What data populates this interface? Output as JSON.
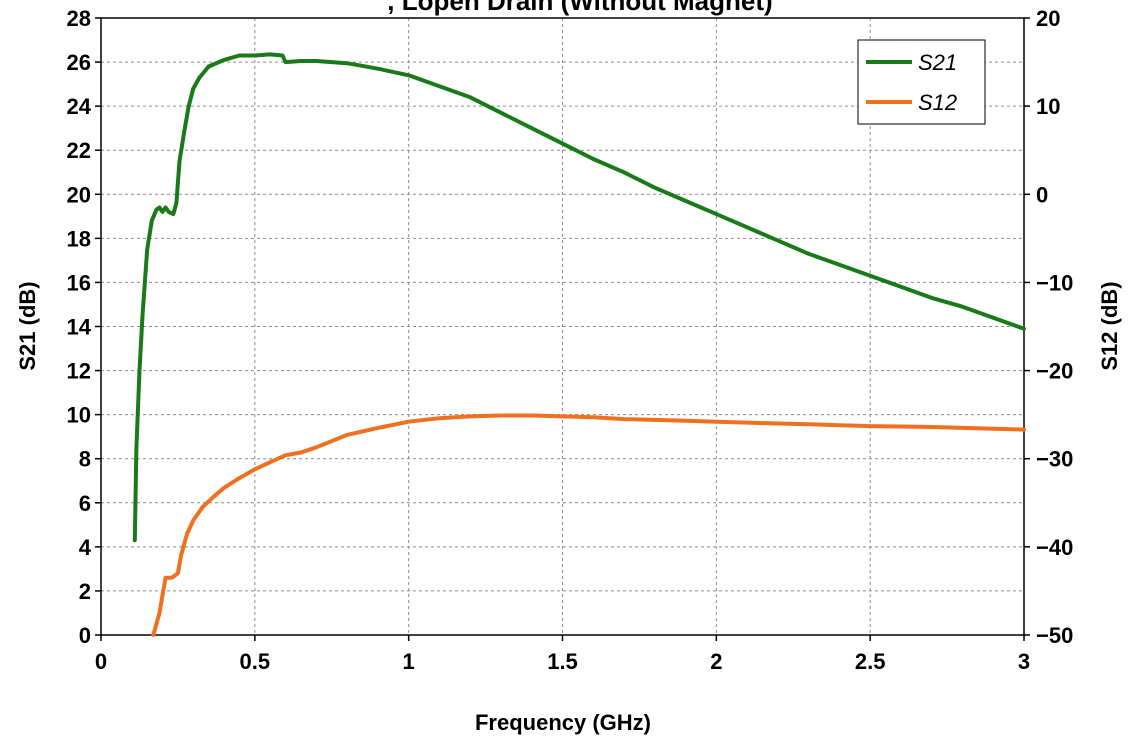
{
  "chart_data": {
    "type": "line",
    "title": ", Lopen Drain (Without Magnet)",
    "xlabel": "Frequency (GHz)",
    "ylabel_left": "S21 (dB)",
    "ylabel_right": "S12 (dB)",
    "xlim": [
      0,
      3
    ],
    "ylim_left": [
      0,
      28
    ],
    "ylim_right": [
      -50,
      20
    ],
    "x_ticks": [
      "0",
      "0.5",
      "1",
      "1.5",
      "2",
      "2.5",
      "3"
    ],
    "y_left_ticks": [
      "0",
      "2",
      "4",
      "6",
      "8",
      "10",
      "12",
      "14",
      "16",
      "18",
      "20",
      "22",
      "24",
      "26",
      "28"
    ],
    "y_right_ticks": [
      "-50",
      "-40",
      "-30",
      "-20",
      "-10",
      "0",
      "10",
      "20"
    ],
    "grid": true,
    "legend_position": "top-right",
    "series": [
      {
        "name": "S21",
        "axis": "left",
        "color": "#1a7a1a",
        "points": [
          [
            0.11,
            4.3
          ],
          [
            0.115,
            8.5
          ],
          [
            0.125,
            12.0
          ],
          [
            0.135,
            14.5
          ],
          [
            0.15,
            17.5
          ],
          [
            0.165,
            18.8
          ],
          [
            0.18,
            19.3
          ],
          [
            0.19,
            19.4
          ],
          [
            0.2,
            19.2
          ],
          [
            0.21,
            19.4
          ],
          [
            0.22,
            19.2
          ],
          [
            0.235,
            19.1
          ],
          [
            0.245,
            19.6
          ],
          [
            0.255,
            21.5
          ],
          [
            0.27,
            22.8
          ],
          [
            0.285,
            24.0
          ],
          [
            0.3,
            24.8
          ],
          [
            0.32,
            25.3
          ],
          [
            0.35,
            25.8
          ],
          [
            0.4,
            26.1
          ],
          [
            0.45,
            26.3
          ],
          [
            0.5,
            26.3
          ],
          [
            0.55,
            26.35
          ],
          [
            0.59,
            26.3
          ],
          [
            0.6,
            26.0
          ],
          [
            0.65,
            26.05
          ],
          [
            0.7,
            26.05
          ],
          [
            0.8,
            25.95
          ],
          [
            0.9,
            25.7
          ],
          [
            1.0,
            25.4
          ],
          [
            1.1,
            24.9
          ],
          [
            1.2,
            24.4
          ],
          [
            1.3,
            23.7
          ],
          [
            1.4,
            23.0
          ],
          [
            1.5,
            22.3
          ],
          [
            1.6,
            21.6
          ],
          [
            1.7,
            21.0
          ],
          [
            1.8,
            20.3
          ],
          [
            1.9,
            19.7
          ],
          [
            2.0,
            19.1
          ],
          [
            2.1,
            18.5
          ],
          [
            2.2,
            17.9
          ],
          [
            2.3,
            17.3
          ],
          [
            2.4,
            16.8
          ],
          [
            2.5,
            16.3
          ],
          [
            2.6,
            15.8
          ],
          [
            2.7,
            15.3
          ],
          [
            2.8,
            14.9
          ],
          [
            2.9,
            14.4
          ],
          [
            3.0,
            13.9
          ]
        ]
      },
      {
        "name": "S12",
        "axis": "right",
        "color": "#f07020",
        "points": [
          [
            0.17,
            -50.0
          ],
          [
            0.19,
            -47.5
          ],
          [
            0.2,
            -45.5
          ],
          [
            0.21,
            -43.5
          ],
          [
            0.23,
            -43.5
          ],
          [
            0.25,
            -43.0
          ],
          [
            0.26,
            -41.0
          ],
          [
            0.28,
            -38.5
          ],
          [
            0.3,
            -37.0
          ],
          [
            0.33,
            -35.5
          ],
          [
            0.36,
            -34.5
          ],
          [
            0.4,
            -33.3
          ],
          [
            0.45,
            -32.2
          ],
          [
            0.5,
            -31.2
          ],
          [
            0.55,
            -30.4
          ],
          [
            0.6,
            -29.6
          ],
          [
            0.65,
            -29.3
          ],
          [
            0.7,
            -28.7
          ],
          [
            0.8,
            -27.3
          ],
          [
            0.9,
            -26.5
          ],
          [
            1.0,
            -25.8
          ],
          [
            1.1,
            -25.4
          ],
          [
            1.2,
            -25.2
          ],
          [
            1.3,
            -25.1
          ],
          [
            1.4,
            -25.1
          ],
          [
            1.5,
            -25.2
          ],
          [
            1.6,
            -25.3
          ],
          [
            1.7,
            -25.5
          ],
          [
            1.8,
            -25.6
          ],
          [
            1.9,
            -25.7
          ],
          [
            2.0,
            -25.8
          ],
          [
            2.1,
            -25.9
          ],
          [
            2.2,
            -26.0
          ],
          [
            2.3,
            -26.1
          ],
          [
            2.4,
            -26.2
          ],
          [
            2.5,
            -26.3
          ],
          [
            2.6,
            -26.35
          ],
          [
            2.7,
            -26.4
          ],
          [
            2.8,
            -26.5
          ],
          [
            2.9,
            -26.6
          ],
          [
            3.0,
            -26.7
          ]
        ]
      }
    ]
  }
}
